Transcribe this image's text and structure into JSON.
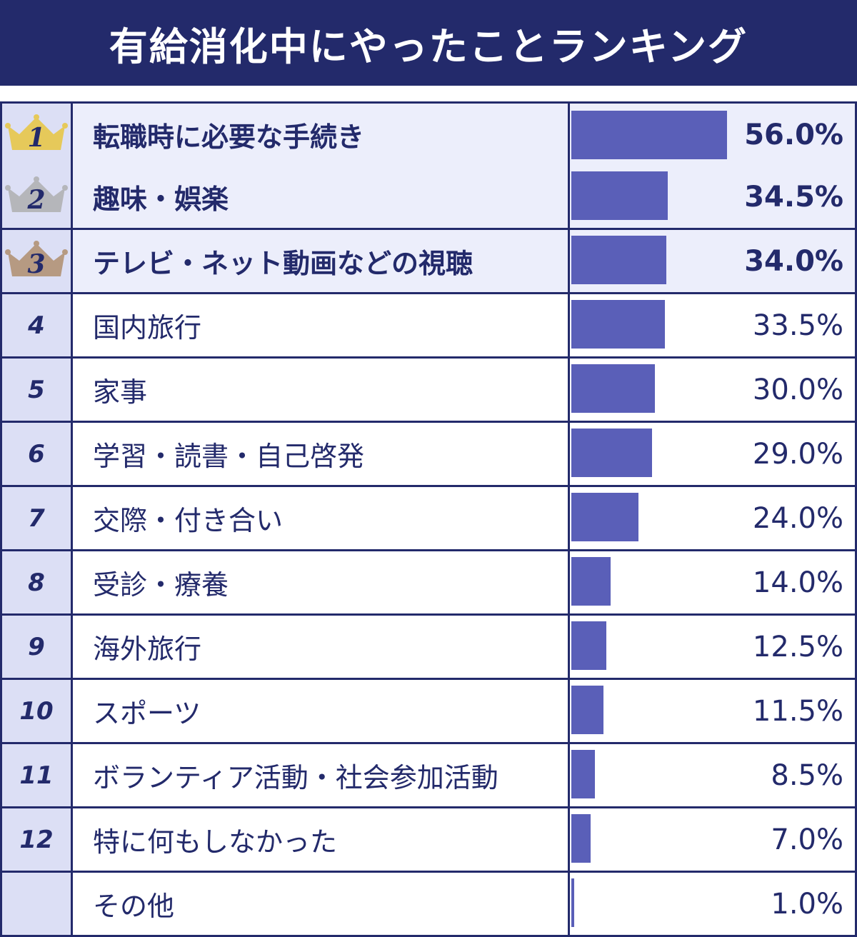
{
  "header": {
    "title": "有給消化中にやったことランキング"
  },
  "colors": {
    "header_bg": "#232a6b",
    "bar": "#5a5fb8",
    "rank_bg": "#dcdff5",
    "highlight_bg": "#eceefb",
    "crown_gold": "#e6c95a",
    "crown_silver": "#b5b6ba",
    "crown_bronze": "#b69a82"
  },
  "chart_data": {
    "type": "bar",
    "title": "有給消化中にやったことランキング",
    "orientation": "horizontal",
    "value_unit": "%",
    "xlim": [
      0,
      100
    ],
    "rows": [
      {
        "rank": "1",
        "crown": "gold",
        "label": "転職時に必要な手続き",
        "value": 56.0,
        "value_label": "56.0%"
      },
      {
        "rank": "2",
        "crown": "silver",
        "label": "趣味・娯楽",
        "value": 34.5,
        "value_label": "34.5%"
      },
      {
        "rank": "3",
        "crown": "bronze",
        "label": "テレビ・ネット動画などの視聴",
        "value": 34.0,
        "value_label": "34.0%"
      },
      {
        "rank": "4",
        "label": "国内旅行",
        "value": 33.5,
        "value_label": "33.5%"
      },
      {
        "rank": "5",
        "label": "家事",
        "value": 30.0,
        "value_label": "30.0%"
      },
      {
        "rank": "6",
        "label": "学習・読書・自己啓発",
        "value": 29.0,
        "value_label": "29.0%"
      },
      {
        "rank": "7",
        "label": "交際・付き合い",
        "value": 24.0,
        "value_label": "24.0%"
      },
      {
        "rank": "8",
        "label": "受診・療養",
        "value": 14.0,
        "value_label": "14.0%"
      },
      {
        "rank": "9",
        "label": "海外旅行",
        "value": 12.5,
        "value_label": "12.5%"
      },
      {
        "rank": "10",
        "label": "スポーツ",
        "value": 11.5,
        "value_label": "11.5%"
      },
      {
        "rank": "11",
        "label": "ボランティア活動・社会参加活動",
        "value": 8.5,
        "value_label": "8.5%"
      },
      {
        "rank": "12",
        "label": "特に何もしなかった",
        "value": 7.0,
        "value_label": "7.0%"
      },
      {
        "rank": "",
        "label": "その他",
        "value": 1.0,
        "value_label": "1.0%"
      }
    ]
  }
}
